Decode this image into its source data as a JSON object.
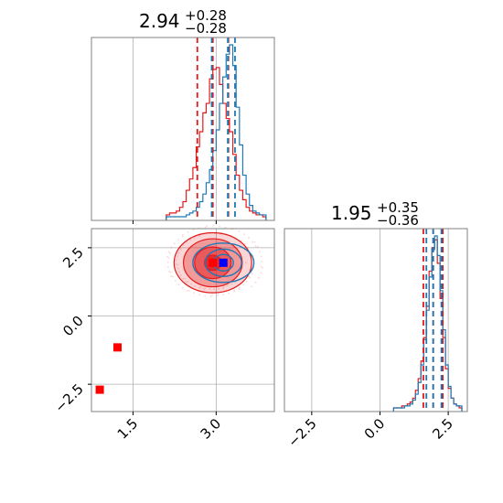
{
  "chart_data": {
    "type": "corner",
    "colors": {
      "red": "#e31a1c",
      "blue": "#1f78b4",
      "grid": "#b0b0b0",
      "frame": "#808080"
    },
    "series_names": [],
    "panels": {
      "x_hist": {
        "title_main": "2.94",
        "title_plus": "+0.28",
        "title_minus": "−0.28",
        "xlim": [
          0.75,
          4.05
        ],
        "quantile_lines": {
          "red": [
            2.66,
            2.94,
            3.22
          ],
          "blue": [
            2.92,
            3.21,
            3.34
          ]
        },
        "bins_x": [
          2.1,
          2.16,
          2.22,
          2.28,
          2.34,
          2.4,
          2.46,
          2.52,
          2.58,
          2.64,
          2.7,
          2.76,
          2.82,
          2.88,
          2.94,
          3.0,
          3.06,
          3.12,
          3.18,
          3.24,
          3.3,
          3.36,
          3.42,
          3.48,
          3.54,
          3.6,
          3.66,
          3.72,
          3.78,
          3.84,
          3.9
        ],
        "red_counts": [
          1,
          2,
          2,
          3,
          5,
          8,
          14,
          20,
          26,
          37,
          45,
          55,
          60,
          73,
          78,
          79,
          70,
          60,
          52,
          45,
          33,
          22,
          14,
          9,
          5,
          3,
          2,
          1,
          1,
          0
        ],
        "blue_counts": [
          0,
          0,
          0,
          0,
          0,
          0,
          1,
          2,
          3,
          5,
          8,
          12,
          18,
          25,
          35,
          46,
          60,
          74,
          86,
          91,
          80,
          58,
          38,
          22,
          12,
          6,
          3,
          2,
          1,
          1
        ]
      },
      "joint": {
        "xlim": [
          0.75,
          4.05
        ],
        "ylim": [
          -3.5,
          3.2
        ],
        "red_points": [
          {
            "x": 0.9,
            "y": -2.7
          },
          {
            "x": 1.22,
            "y": -1.15
          },
          {
            "x": 2.94,
            "y": 1.95
          }
        ],
        "blue_points": [
          {
            "x": 3.13,
            "y": 1.95
          }
        ],
        "red_contour": {
          "cx": 2.94,
          "cy": 1.95,
          "levels": [
            {
              "sx": 0.15,
              "sy": 0.28
            },
            {
              "sx": 0.33,
              "sy": 0.58
            },
            {
              "sx": 0.53,
              "sy": 0.88
            },
            {
              "sx": 0.7,
              "sy": 1.1
            }
          ]
        },
        "blue_contour": {
          "cx": 3.13,
          "cy": 1.95,
          "levels": [
            {
              "sx": 0.18,
              "sy": 0.3
            },
            {
              "sx": 0.33,
              "sy": 0.5
            },
            {
              "sx": 0.55,
              "sy": 0.72
            }
          ]
        }
      },
      "y_hist": {
        "title_main": "1.95",
        "title_plus": "+0.35",
        "title_minus": "−0.36",
        "xlim": [
          -3.5,
          3.2
        ],
        "quantile_lines": {
          "red": [
            1.59,
            1.95,
            2.3
          ],
          "blue": [
            1.7,
            1.95,
            2.25
          ]
        },
        "bins_x": [
          0.5,
          0.6,
          0.7,
          0.8,
          0.9,
          1.0,
          1.1,
          1.2,
          1.3,
          1.4,
          1.5,
          1.6,
          1.7,
          1.8,
          1.9,
          2.0,
          2.1,
          2.2,
          2.3,
          2.4,
          2.5,
          2.6,
          2.7,
          2.8,
          2.9,
          3.0
        ],
        "red_counts": [
          0,
          0,
          0,
          1,
          1,
          2,
          3,
          5,
          9,
          15,
          24,
          36,
          52,
          70,
          82,
          86,
          74,
          56,
          36,
          20,
          10,
          5,
          2,
          1,
          0
        ],
        "blue_counts": [
          0,
          0,
          0,
          0,
          1,
          1,
          2,
          4,
          7,
          13,
          22,
          35,
          50,
          67,
          81,
          88,
          78,
          60,
          40,
          22,
          11,
          5,
          2,
          1,
          1
        ]
      }
    },
    "x_ticks_joint": [
      "1.5",
      "3.0"
    ],
    "x_ticks_joint_values": [
      1.5,
      3.0
    ],
    "y_ticks_joint": [
      "2.5",
      "0.0",
      "−2.5"
    ],
    "y_ticks_joint_values": [
      2.5,
      0.0,
      -2.5
    ],
    "x_ticks_yhist": [
      "−2.5",
      "0.0",
      "2.5"
    ],
    "x_ticks_yhist_values": [
      -2.5,
      0.0,
      2.5
    ],
    "grid": true
  }
}
